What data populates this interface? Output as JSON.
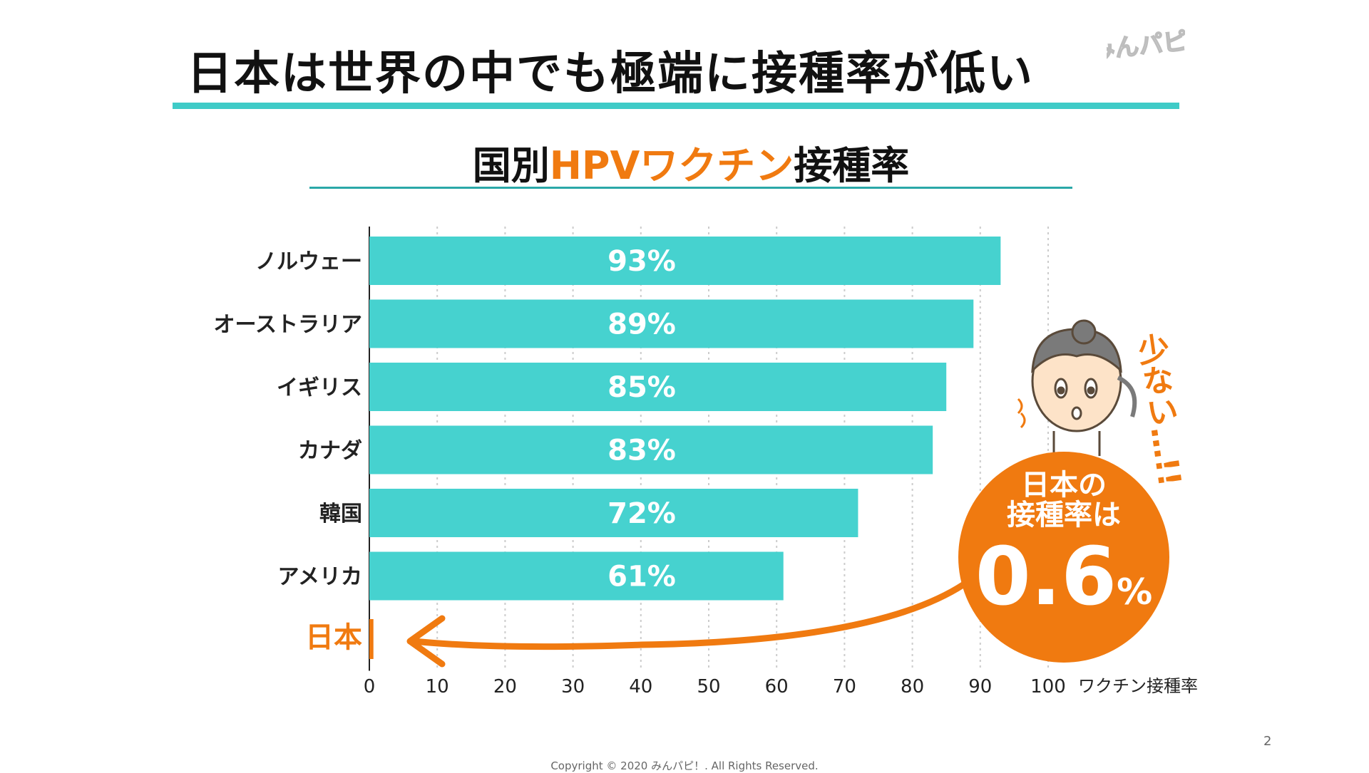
{
  "slide": {
    "title": "日本は世界の中でも極端に接種率が低い",
    "logo_text": "みんパピ!",
    "page_number": "2",
    "copyright": "Copyright © 2020 みんパピ！. All Rights Reserved."
  },
  "colors": {
    "bar": "#46d2cf",
    "accent": "#f07a10",
    "title_rule": "#3fcbc7"
  },
  "chart_title": {
    "prefix": "国別",
    "highlight": "HPVワクチン",
    "suffix": "接種率"
  },
  "callout": {
    "label_line1": "日本の",
    "label_line2": "接種率は",
    "value": "0.6",
    "unit": "%"
  },
  "side_note": "少ない…!!",
  "chart_data": {
    "type": "bar",
    "orientation": "horizontal",
    "categories": [
      "ノルウェー",
      "オーストラリア",
      "イギリス",
      "カナダ",
      "韓国",
      "アメリカ",
      "日本"
    ],
    "values": [
      93,
      89,
      85,
      83,
      72,
      61,
      0.6
    ],
    "data_labels": [
      "93%",
      "89%",
      "85%",
      "83%",
      "72%",
      "61%",
      ""
    ],
    "highlight_category": "日本",
    "xlabel": "ワクチン接種率",
    "xlim": [
      0,
      100
    ],
    "xticks": [
      0,
      10,
      20,
      30,
      40,
      50,
      60,
      70,
      80,
      90,
      100
    ],
    "grid": "vertical dotted"
  }
}
